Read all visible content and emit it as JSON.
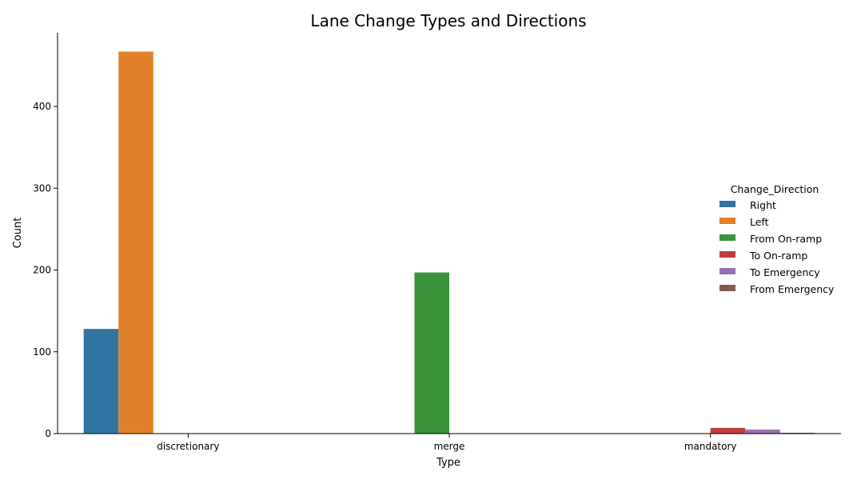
{
  "chart_data": {
    "type": "bar",
    "title": "Lane Change Types and Directions",
    "xlabel": "Type",
    "ylabel": "Count",
    "categories": [
      "discretionary",
      "merge",
      "mandatory"
    ],
    "ylim": [
      0,
      490
    ],
    "yticks": [
      0,
      100,
      200,
      300,
      400
    ],
    "legend": {
      "title": "Change_Direction",
      "placement": "right"
    },
    "series": [
      {
        "name": "Right",
        "color": "#3274a1",
        "values": [
          128,
          0,
          0
        ]
      },
      {
        "name": "Left",
        "color": "#e1812c",
        "values": [
          467,
          0,
          0
        ]
      },
      {
        "name": "From On-ramp",
        "color": "#3a923a",
        "values": [
          0,
          197,
          0
        ]
      },
      {
        "name": "To On-ramp",
        "color": "#c03d3e",
        "values": [
          0,
          0,
          7
        ]
      },
      {
        "name": "To Emergency",
        "color": "#9372b2",
        "values": [
          0,
          0,
          5
        ]
      },
      {
        "name": "From Emergency",
        "color": "#845b53",
        "values": [
          0,
          0,
          1
        ]
      }
    ]
  }
}
